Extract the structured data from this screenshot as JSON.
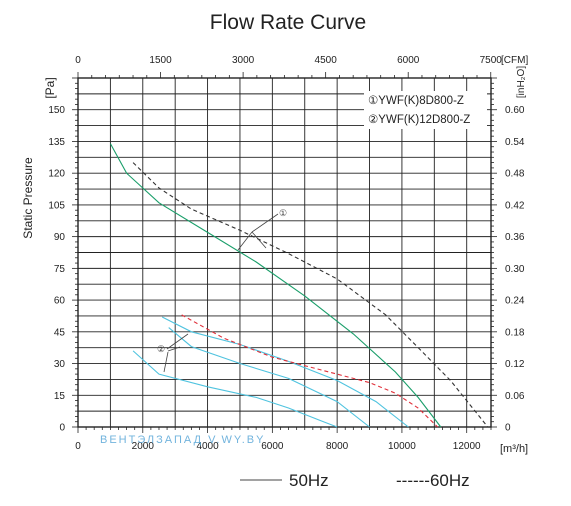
{
  "chart_data": {
    "type": "line",
    "title": "Flow Rate Curve",
    "ylabel": "Static Pressure",
    "y_unit": "[Pa]",
    "y2_unit": "[inH₂O]",
    "x_unit": "[m³/h]",
    "x2_unit": "[CFM]",
    "xlim": [
      0,
      12750
    ],
    "ylim": [
      0,
      165
    ],
    "x_ticks": [
      "0",
      "2000",
      "4000",
      "6000",
      "8000",
      "10000",
      "12000"
    ],
    "x2_ticks": [
      "0",
      "1500",
      "3000",
      "4500",
      "6000",
      "7500"
    ],
    "y_ticks": [
      "0",
      "15",
      "30",
      "45",
      "60",
      "75",
      "90",
      "105",
      "120",
      "135",
      "150"
    ],
    "y2_ticks": [
      "0",
      "0.06",
      "0.12",
      "0.18",
      "0.24",
      "0.30",
      "0.36",
      "0.42",
      "0.48",
      "0.54",
      "0.60"
    ],
    "grid": true,
    "model_legend": [
      "①YWF(K)8D800-Z",
      "②YWF(K)12D800-Z"
    ],
    "callouts": [
      "①",
      "②"
    ],
    "line_legend": [
      "50Hz",
      "------60Hz"
    ],
    "watermark": "ВЕНТЭЛЗАПАД V.WY.BY",
    "series": [
      {
        "model": "①",
        "freq": "50Hz",
        "color": "#1a9e6a",
        "dash": false,
        "x": [
          1000,
          1500,
          2500,
          4000,
          5500,
          7000,
          8500,
          9800,
          10500,
          11200
        ],
        "y": [
          134,
          120,
          106,
          92,
          78,
          62,
          44,
          26,
          14,
          0
        ]
      },
      {
        "model": "①",
        "freq": "60Hz",
        "color": "#333333",
        "dash": true,
        "x": [
          1700,
          2500,
          3500,
          5000,
          6500,
          8000,
          9500,
          10600,
          11500,
          12650
        ],
        "y": [
          125,
          113,
          103,
          93,
          82,
          70,
          53,
          36,
          22,
          0
        ]
      },
      {
        "model": "②",
        "freq": "50Hz",
        "color": "#4fc3df",
        "dash": false,
        "x": [
          2600,
          3500,
          5000,
          6500,
          8000,
          9200,
          10200
        ],
        "y": [
          52,
          45,
          39,
          31,
          22,
          12,
          0
        ]
      },
      {
        "model": "②",
        "freq": "50Hz",
        "color": "#4fc3df",
        "dash": false,
        "x": [
          1700,
          2500,
          4000,
          5500,
          6500,
          7500,
          8000
        ],
        "y": [
          36,
          25,
          19,
          14,
          9,
          3,
          0
        ]
      },
      {
        "model": "②",
        "freq": "60Hz",
        "color": "#e0303a",
        "dash": true,
        "x": [
          3200,
          4500,
          6000,
          7500,
          9000,
          9800,
          10500,
          11100
        ],
        "y": [
          53,
          42,
          33,
          27,
          21,
          16,
          9,
          0
        ]
      },
      {
        "model": "②",
        "freq": "60Hz",
        "color": "#4fc3df",
        "dash": false,
        "x": [
          2800,
          3500,
          5000,
          6500,
          8000,
          9000
        ],
        "y": [
          47,
          38,
          30,
          23,
          12,
          0
        ]
      }
    ]
  }
}
